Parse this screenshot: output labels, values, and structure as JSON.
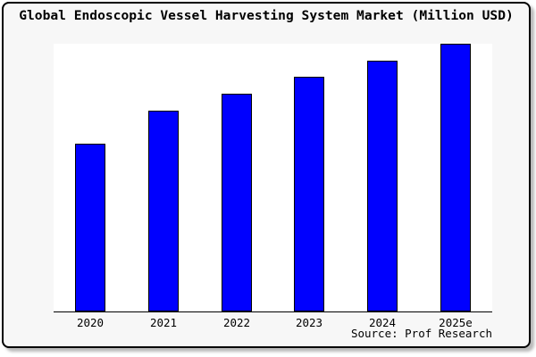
{
  "title": "Global Endoscopic Vessel Harvesting System Market (Million USD)",
  "source_credit": "Source: Prof Research",
  "colors": {
    "bar_fill": "#0000fe",
    "bar_outline": "#000000",
    "card_background": "#f7f7f7",
    "plot_background": "#ffffff",
    "axis_line": "#000000",
    "text": "#000000",
    "frame_border": "#000000"
  },
  "chart_data": {
    "type": "bar",
    "title": "Global Endoscopic Vessel Harvesting System Market (Million USD)",
    "categories": [
      "2020",
      "2021",
      "2022",
      "2023",
      "2024",
      "2025e"
    ],
    "values": [
      188,
      225,
      244,
      263,
      281,
      300
    ],
    "xlabel": "",
    "ylabel": "",
    "ylim": [
      0,
      301
    ],
    "grid": false,
    "legend": false,
    "y_axis_labels_visible": false,
    "note": "No y-axis tick labels are shown in the chart; values are relative bar heights estimated from pixels."
  }
}
